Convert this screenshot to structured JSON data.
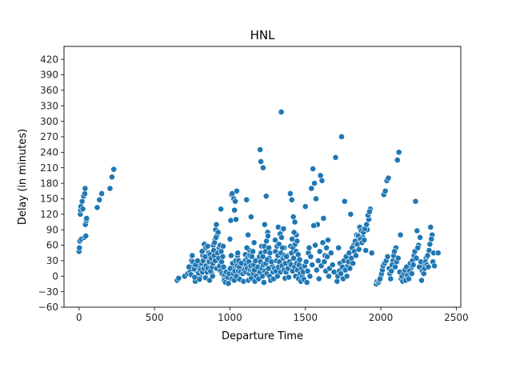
{
  "chart_data": {
    "type": "scatter",
    "title": "HNL",
    "xlabel": "Departure Time",
    "ylabel": "Delay (in minutes)",
    "xlim": [
      -100,
      2530
    ],
    "ylim": [
      -60,
      445
    ],
    "xticks": [
      0,
      500,
      1000,
      1500,
      2000,
      2500
    ],
    "yticks": [
      -60,
      -30,
      0,
      30,
      60,
      90,
      120,
      150,
      180,
      210,
      240,
      270,
      300,
      330,
      360,
      390,
      420
    ],
    "grid": false,
    "marker_color": "#1f77b4",
    "marker_edge_color": "#ffffff",
    "points": [
      [
        0,
        48
      ],
      [
        2,
        55
      ],
      [
        5,
        68
      ],
      [
        8,
        120
      ],
      [
        10,
        128
      ],
      [
        12,
        135
      ],
      [
        15,
        72
      ],
      [
        20,
        145
      ],
      [
        25,
        130
      ],
      [
        30,
        155
      ],
      [
        35,
        75
      ],
      [
        38,
        160
      ],
      [
        40,
        170
      ],
      [
        42,
        100
      ],
      [
        45,
        78
      ],
      [
        48,
        108
      ],
      [
        50,
        112
      ],
      [
        120,
        133
      ],
      [
        135,
        148
      ],
      [
        150,
        160
      ],
      [
        205,
        170
      ],
      [
        218,
        192
      ],
      [
        230,
        207
      ],
      [
        650,
        -8
      ],
      [
        660,
        -4
      ],
      [
        700,
        0
      ],
      [
        720,
        5
      ],
      [
        735,
        12
      ],
      [
        740,
        20
      ],
      [
        745,
        30
      ],
      [
        750,
        40
      ],
      [
        770,
        -10
      ],
      [
        780,
        10
      ],
      [
        790,
        18
      ],
      [
        800,
        0
      ],
      [
        810,
        25
      ],
      [
        820,
        40
      ],
      [
        825,
        50
      ],
      [
        830,
        62
      ],
      [
        840,
        55
      ],
      [
        850,
        35
      ],
      [
        860,
        45
      ],
      [
        870,
        20
      ],
      [
        880,
        5
      ],
      [
        890,
        60
      ],
      [
        900,
        70
      ],
      [
        905,
        90
      ],
      [
        910,
        100
      ],
      [
        915,
        80
      ],
      [
        920,
        50
      ],
      [
        930,
        30
      ],
      [
        940,
        130
      ],
      [
        950,
        10
      ],
      [
        960,
        0
      ],
      [
        980,
        -5
      ],
      [
        1000,
        72
      ],
      [
        1005,
        108
      ],
      [
        1010,
        158
      ],
      [
        1015,
        160
      ],
      [
        1020,
        20
      ],
      [
        1025,
        150
      ],
      [
        1030,
        128
      ],
      [
        1035,
        145
      ],
      [
        1040,
        110
      ],
      [
        1045,
        165
      ],
      [
        1050,
        40
      ],
      [
        1060,
        5
      ],
      [
        1080,
        15
      ],
      [
        1100,
        30
      ],
      [
        1110,
        148
      ],
      [
        1120,
        80
      ],
      [
        1130,
        50
      ],
      [
        1140,
        115
      ],
      [
        1150,
        25
      ],
      [
        1160,
        65
      ],
      [
        1180,
        10
      ],
      [
        1200,
        245
      ],
      [
        1205,
        222
      ],
      [
        1210,
        58
      ],
      [
        1220,
        210
      ],
      [
        1230,
        100
      ],
      [
        1240,
        155
      ],
      [
        1250,
        85
      ],
      [
        1260,
        35
      ],
      [
        1280,
        20
      ],
      [
        1300,
        70
      ],
      [
        1320,
        95
      ],
      [
        1340,
        318
      ],
      [
        1350,
        90
      ],
      [
        1360,
        55
      ],
      [
        1380,
        40
      ],
      [
        1400,
        160
      ],
      [
        1410,
        148
      ],
      [
        1420,
        115
      ],
      [
        1430,
        105
      ],
      [
        1440,
        80
      ],
      [
        1450,
        30
      ],
      [
        1460,
        10
      ],
      [
        1500,
        135
      ],
      [
        1520,
        45
      ],
      [
        1540,
        170
      ],
      [
        1550,
        208
      ],
      [
        1560,
        180
      ],
      [
        1570,
        150
      ],
      [
        1580,
        100
      ],
      [
        1600,
        195
      ],
      [
        1610,
        185
      ],
      [
        1620,
        112
      ],
      [
        1630,
        40
      ],
      [
        1650,
        70
      ],
      [
        1700,
        230
      ],
      [
        1720,
        55
      ],
      [
        1740,
        270
      ],
      [
        1760,
        145
      ],
      [
        1780,
        20
      ],
      [
        1800,
        120
      ],
      [
        1820,
        60
      ],
      [
        1840,
        80
      ],
      [
        1860,
        95
      ],
      [
        1880,
        75
      ],
      [
        1900,
        50
      ],
      [
        1910,
        90
      ],
      [
        1920,
        110
      ],
      [
        1930,
        130
      ],
      [
        1940,
        45
      ],
      [
        1970,
        -15
      ],
      [
        2000,
        0
      ],
      [
        2020,
        158
      ],
      [
        2030,
        165
      ],
      [
        2040,
        185
      ],
      [
        2050,
        190
      ],
      [
        2080,
        30
      ],
      [
        2100,
        55
      ],
      [
        2110,
        225
      ],
      [
        2120,
        240
      ],
      [
        2130,
        80
      ],
      [
        2150,
        10
      ],
      [
        2180,
        0
      ],
      [
        2200,
        15
      ],
      [
        2220,
        40
      ],
      [
        2230,
        145
      ],
      [
        2240,
        88
      ],
      [
        2250,
        60
      ],
      [
        2260,
        75
      ],
      [
        2280,
        20
      ],
      [
        2300,
        35
      ],
      [
        2320,
        50
      ],
      [
        2330,
        95
      ],
      [
        2340,
        80
      ],
      [
        2350,
        45
      ],
      [
        2380,
        45
      ],
      [
        728,
        18
      ],
      [
        736,
        8
      ],
      [
        742,
        3
      ],
      [
        755,
        28
      ],
      [
        762,
        14
      ],
      [
        766,
        -2
      ],
      [
        772,
        22
      ],
      [
        785,
        30
      ],
      [
        792,
        6
      ],
      [
        798,
        -6
      ],
      [
        805,
        12
      ],
      [
        815,
        48
      ],
      [
        818,
        8
      ],
      [
        822,
        30
      ],
      [
        828,
        15
      ],
      [
        835,
        38
      ],
      [
        838,
        -3
      ],
      [
        842,
        20
      ],
      [
        848,
        8
      ],
      [
        852,
        58
      ],
      [
        855,
        15
      ],
      [
        862,
        28
      ],
      [
        865,
        -8
      ],
      [
        868,
        42
      ],
      [
        872,
        10
      ],
      [
        876,
        35
      ],
      [
        882,
        18
      ],
      [
        885,
        0
      ],
      [
        888,
        25
      ],
      [
        892,
        50
      ],
      [
        895,
        40
      ],
      [
        898,
        65
      ],
      [
        902,
        30
      ],
      [
        908,
        75
      ],
      [
        912,
        15
      ],
      [
        918,
        45
      ],
      [
        922,
        85
      ],
      [
        925,
        35
      ],
      [
        928,
        55
      ],
      [
        932,
        20
      ],
      [
        935,
        60
      ],
      [
        938,
        10
      ],
      [
        942,
        48
      ],
      [
        945,
        28
      ],
      [
        948,
        5
      ],
      [
        952,
        38
      ],
      [
        955,
        58
      ],
      [
        958,
        18
      ],
      [
        962,
        -8
      ],
      [
        965,
        3
      ],
      [
        970,
        -12
      ],
      [
        975,
        8
      ],
      [
        985,
        -2
      ],
      [
        990,
        -14
      ],
      [
        995,
        5
      ],
      [
        1002,
        15
      ],
      [
        1008,
        40
      ],
      [
        1012,
        -5
      ],
      [
        1018,
        25
      ],
      [
        1022,
        5
      ],
      [
        1028,
        -8
      ],
      [
        1032,
        10
      ],
      [
        1038,
        30
      ],
      [
        1042,
        0
      ],
      [
        1048,
        20
      ],
      [
        1052,
        45
      ],
      [
        1055,
        10
      ],
      [
        1058,
        30
      ],
      [
        1062,
        18
      ],
      [
        1065,
        -6
      ],
      [
        1070,
        8
      ],
      [
        1075,
        25
      ],
      [
        1085,
        5
      ],
      [
        1090,
        -10
      ],
      [
        1095,
        12
      ],
      [
        1102,
        42
      ],
      [
        1105,
        8
      ],
      [
        1108,
        22
      ],
      [
        1112,
        55
      ],
      [
        1115,
        15
      ],
      [
        1118,
        35
      ],
      [
        1122,
        -8
      ],
      [
        1125,
        28
      ],
      [
        1128,
        5
      ],
      [
        1132,
        40
      ],
      [
        1135,
        12
      ],
      [
        1138,
        20
      ],
      [
        1142,
        -4
      ],
      [
        1145,
        38
      ],
      [
        1148,
        10
      ],
      [
        1152,
        48
      ],
      [
        1155,
        5
      ],
      [
        1158,
        22
      ],
      [
        1162,
        12
      ],
      [
        1165,
        -10
      ],
      [
        1170,
        30
      ],
      [
        1175,
        0
      ],
      [
        1185,
        18
      ],
      [
        1190,
        -5
      ],
      [
        1195,
        38
      ],
      [
        1198,
        8
      ],
      [
        1202,
        28
      ],
      [
        1206,
        45
      ],
      [
        1212,
        15
      ],
      [
        1215,
        0
      ],
      [
        1218,
        38
      ],
      [
        1222,
        22
      ],
      [
        1225,
        -12
      ],
      [
        1228,
        58
      ],
      [
        1232,
        10
      ],
      [
        1235,
        48
      ],
      [
        1238,
        25
      ],
      [
        1242,
        68
      ],
      [
        1245,
        5
      ],
      [
        1248,
        32
      ],
      [
        1252,
        78
      ],
      [
        1255,
        15
      ],
      [
        1258,
        55
      ],
      [
        1262,
        0
      ],
      [
        1265,
        45
      ],
      [
        1270,
        -8
      ],
      [
        1275,
        28
      ],
      [
        1285,
        8
      ],
      [
        1290,
        -5
      ],
      [
        1295,
        15
      ],
      [
        1302,
        48
      ],
      [
        1305,
        10
      ],
      [
        1308,
        30
      ],
      [
        1312,
        58
      ],
      [
        1315,
        0
      ],
      [
        1318,
        40
      ],
      [
        1322,
        18
      ],
      [
        1325,
        62
      ],
      [
        1328,
        28
      ],
      [
        1332,
        82
      ],
      [
        1335,
        8
      ],
      [
        1338,
        45
      ],
      [
        1342,
        75
      ],
      [
        1345,
        20
      ],
      [
        1348,
        55
      ],
      [
        1352,
        35
      ],
      [
        1355,
        92
      ],
      [
        1358,
        12
      ],
      [
        1362,
        40
      ],
      [
        1365,
        -4
      ],
      [
        1368,
        25
      ],
      [
        1372,
        8
      ],
      [
        1375,
        38
      ],
      [
        1385,
        15
      ],
      [
        1390,
        -2
      ],
      [
        1395,
        28
      ],
      [
        1402,
        58
      ],
      [
        1405,
        22
      ],
      [
        1408,
        45
      ],
      [
        1412,
        72
      ],
      [
        1415,
        10
      ],
      [
        1418,
        55
      ],
      [
        1422,
        35
      ],
      [
        1425,
        85
      ],
      [
        1428,
        18
      ],
      [
        1432,
        62
      ],
      [
        1435,
        0
      ],
      [
        1438,
        48
      ],
      [
        1442,
        25
      ],
      [
        1445,
        68
      ],
      [
        1448,
        12
      ],
      [
        1452,
        42
      ],
      [
        1455,
        -5
      ],
      [
        1458,
        22
      ],
      [
        1462,
        32
      ],
      [
        1465,
        5
      ],
      [
        1470,
        -10
      ],
      [
        1475,
        15
      ],
      [
        1480,
        0
      ],
      [
        1485,
        8
      ],
      [
        1490,
        -6
      ],
      [
        1495,
        20
      ],
      [
        1505,
        28
      ],
      [
        1510,
        -12
      ],
      [
        1515,
        10
      ],
      [
        1525,
        55
      ],
      [
        1530,
        0
      ],
      [
        1535,
        38
      ],
      [
        1545,
        22
      ],
      [
        1555,
        98
      ],
      [
        1565,
        60
      ],
      [
        1575,
        12
      ],
      [
        1585,
        30
      ],
      [
        1590,
        -5
      ],
      [
        1595,
        48
      ],
      [
        1605,
        20
      ],
      [
        1615,
        65
      ],
      [
        1625,
        28
      ],
      [
        1635,
        10
      ],
      [
        1640,
        55
      ],
      [
        1645,
        38
      ],
      [
        1655,
        0
      ],
      [
        1660,
        15
      ],
      [
        1670,
        45
      ],
      [
        1680,
        22
      ],
      [
        1690,
        8
      ],
      [
        1710,
        -10
      ],
      [
        1715,
        0
      ],
      [
        1725,
        10
      ],
      [
        1730,
        25
      ],
      [
        1735,
        5
      ],
      [
        1745,
        18
      ],
      [
        1750,
        -5
      ],
      [
        1755,
        30
      ],
      [
        1765,
        12
      ],
      [
        1770,
        38
      ],
      [
        1775,
        0
      ],
      [
        1785,
        28
      ],
      [
        1790,
        45
      ],
      [
        1795,
        15
      ],
      [
        1805,
        35
      ],
      [
        1810,
        55
      ],
      [
        1815,
        25
      ],
      [
        1825,
        48
      ],
      [
        1830,
        68
      ],
      [
        1835,
        40
      ],
      [
        1845,
        62
      ],
      [
        1850,
        78
      ],
      [
        1855,
        52
      ],
      [
        1865,
        72
      ],
      [
        1870,
        88
      ],
      [
        1875,
        65
      ],
      [
        1885,
        85
      ],
      [
        1890,
        70
      ],
      [
        1895,
        92
      ],
      [
        1905,
        100
      ],
      [
        1915,
        118
      ],
      [
        1925,
        125
      ],
      [
        1975,
        -10
      ],
      [
        1985,
        -12
      ],
      [
        1990,
        -8
      ],
      [
        1995,
        -5
      ],
      [
        2005,
        5
      ],
      [
        2010,
        12
      ],
      [
        2015,
        20
      ],
      [
        2025,
        25
      ],
      [
        2035,
        30
      ],
      [
        2045,
        38
      ],
      [
        2055,
        15
      ],
      [
        2060,
        5
      ],
      [
        2065,
        -5
      ],
      [
        2070,
        10
      ],
      [
        2075,
        22
      ],
      [
        2085,
        40
      ],
      [
        2090,
        48
      ],
      [
        2095,
        18
      ],
      [
        2105,
        28
      ],
      [
        2115,
        35
      ],
      [
        2125,
        8
      ],
      [
        2135,
        -5
      ],
      [
        2140,
        0
      ],
      [
        2145,
        -10
      ],
      [
        2155,
        5
      ],
      [
        2160,
        12
      ],
      [
        2165,
        -8
      ],
      [
        2170,
        18
      ],
      [
        2175,
        2
      ],
      [
        2185,
        -5
      ],
      [
        2190,
        10
      ],
      [
        2195,
        25
      ],
      [
        2205,
        5
      ],
      [
        2210,
        30
      ],
      [
        2215,
        22
      ],
      [
        2225,
        48
      ],
      [
        2235,
        35
      ],
      [
        2245,
        55
      ],
      [
        2255,
        18
      ],
      [
        2265,
        28
      ],
      [
        2270,
        -8
      ],
      [
        2275,
        10
      ],
      [
        2285,
        5
      ],
      [
        2290,
        15
      ],
      [
        2295,
        28
      ],
      [
        2305,
        22
      ],
      [
        2310,
        40
      ],
      [
        2315,
        18
      ],
      [
        2325,
        62
      ],
      [
        2335,
        72
      ],
      [
        2345,
        28
      ],
      [
        2355,
        20
      ]
    ]
  }
}
